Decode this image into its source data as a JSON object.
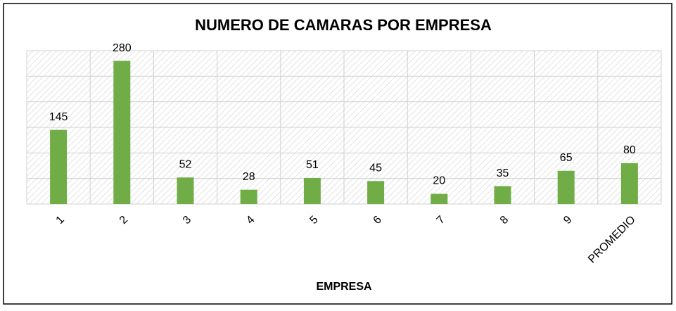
{
  "chart_data": {
    "type": "bar",
    "title": "NUMERO DE CAMARAS POR EMPRESA",
    "x_label": "EMPRESA",
    "categories": [
      "1",
      "2",
      "3",
      "4",
      "5",
      "6",
      "7",
      "8",
      "9",
      "PROMEDIO"
    ],
    "values": [
      145,
      280,
      52,
      28,
      51,
      45,
      20,
      35,
      65,
      80
    ],
    "color": "#70ad47",
    "ylim": [
      0,
      300
    ],
    "yticks": [
      0,
      50,
      100,
      150,
      200,
      250,
      300
    ],
    "grid": true
  }
}
